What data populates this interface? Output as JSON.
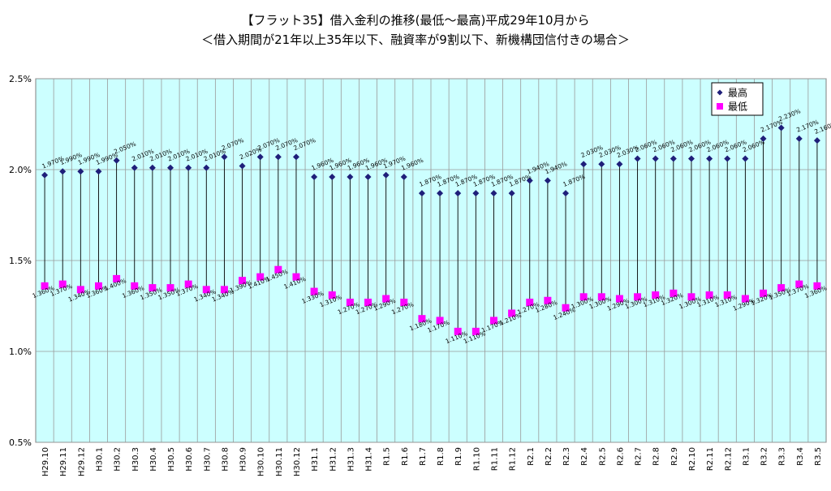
{
  "chart_data": {
    "type": "line",
    "title": "【フラット35】借入金利の推移(最低～最高)平成29年10月から",
    "subtitle": "＜借入期間が21年以上35年以下、融資率が9割以下、新機構団信付きの場合＞",
    "xlabel": "",
    "ylabel": "",
    "ylim": [
      0.5,
      2.5
    ],
    "y_ticks": [
      "0.5%",
      "1.0%",
      "1.5%",
      "2.0%",
      "2.5%"
    ],
    "y_tick_values": [
      0.5,
      1.0,
      1.5,
      2.0,
      2.5
    ],
    "grid": true,
    "legend_position": "top-right",
    "categories": [
      "H29.10",
      "H29.11",
      "H29.12",
      "H30.1",
      "H30.2",
      "H30.3",
      "H30.4",
      "H30.5",
      "H30.6",
      "H30.7",
      "H30.8",
      "H30.9",
      "H30.10",
      "H30.11",
      "H30.12",
      "H31.1",
      "H31.2",
      "H31.3",
      "H31.4",
      "R1.5",
      "R1.6",
      "R1.7",
      "R1.8",
      "R1.9",
      "R1.10",
      "R1.11",
      "R1.12",
      "R2.1",
      "R2.2",
      "R2.3",
      "R2.4",
      "R2.5",
      "R2.6",
      "R2.7",
      "R2.8",
      "R2.9",
      "R2.10",
      "R2.11",
      "R2.12",
      "R3.1",
      "R3.2",
      "R3.3",
      "R3.4",
      "R3.5"
    ],
    "series": [
      {
        "name": "最高",
        "color": "#1f1f7a",
        "marker": "diamond",
        "values": [
          1.97,
          1.99,
          1.99,
          1.99,
          2.05,
          2.01,
          2.01,
          2.01,
          2.01,
          2.01,
          2.07,
          2.02,
          2.07,
          2.07,
          2.07,
          1.96,
          1.96,
          1.96,
          1.96,
          1.97,
          1.96,
          1.87,
          1.87,
          1.87,
          1.87,
          1.87,
          1.87,
          1.94,
          1.94,
          1.87,
          2.03,
          2.03,
          2.03,
          2.06,
          2.06,
          2.06,
          2.06,
          2.06,
          2.06,
          2.06,
          2.17,
          2.23,
          2.17,
          2.16
        ],
        "labels": [
          "1.970%",
          "1.990%",
          "1.990%",
          "1.990%",
          "2.050%",
          "2.010%",
          "2.010%",
          "2.010%",
          "2.010%",
          "2.010%",
          "2.070%",
          "2.020%",
          "2.070%",
          "2.070%",
          "2.070%",
          "1.960%",
          "1.960%",
          "1.960%",
          "1.960%",
          "1.970%",
          "1.960%",
          "1.870%",
          "1.870%",
          "1.870%",
          "1.870%",
          "1.870%",
          "1.870%",
          "1.940%",
          "1.940%",
          "1.870%",
          "2.030%",
          "2.030%",
          "2.030%",
          "2.060%",
          "2.060%",
          "2.060%",
          "2.060%",
          "2.060%",
          "2.060%",
          "2.060%",
          "2.170%",
          "2.230%",
          "2.170%",
          "2.160%"
        ]
      },
      {
        "name": "最低",
        "color": "#ff00ff",
        "marker": "square",
        "values": [
          1.36,
          1.37,
          1.34,
          1.36,
          1.4,
          1.36,
          1.35,
          1.35,
          1.37,
          1.34,
          1.34,
          1.39,
          1.41,
          1.45,
          1.41,
          1.33,
          1.31,
          1.27,
          1.27,
          1.29,
          1.27,
          1.18,
          1.17,
          1.11,
          1.11,
          1.17,
          1.21,
          1.27,
          1.28,
          1.24,
          1.3,
          1.3,
          1.29,
          1.3,
          1.31,
          1.32,
          1.3,
          1.31,
          1.31,
          1.29,
          1.32,
          1.35,
          1.37,
          1.36
        ],
        "labels": [
          "1.360%",
          "1.370%",
          "1.340%",
          "1.360%",
          "1.400%",
          "1.360%",
          "1.350%",
          "1.350%",
          "1.370%",
          "1.340%",
          "1.340%",
          "1.390%",
          "1.410%",
          "1.450%",
          "1.410%",
          "1.330%",
          "1.310%",
          "1.270%",
          "1.270%",
          "1.290%",
          "1.270%",
          "1.180%",
          "1.170%",
          "1.110%",
          "1.110%",
          "1.170%",
          "1.210%",
          "1.270%",
          "1.280%",
          "1.240%",
          "1.300%",
          "1.300%",
          "1.290%",
          "1.300%",
          "1.310%",
          "1.320%",
          "1.300%",
          "1.310%",
          "1.310%",
          "1.290%",
          "1.320%",
          "1.350%",
          "1.370%",
          "1.360%"
        ]
      }
    ],
    "plot_background": "#ccffff",
    "grid_color": "#9a9a9a"
  }
}
